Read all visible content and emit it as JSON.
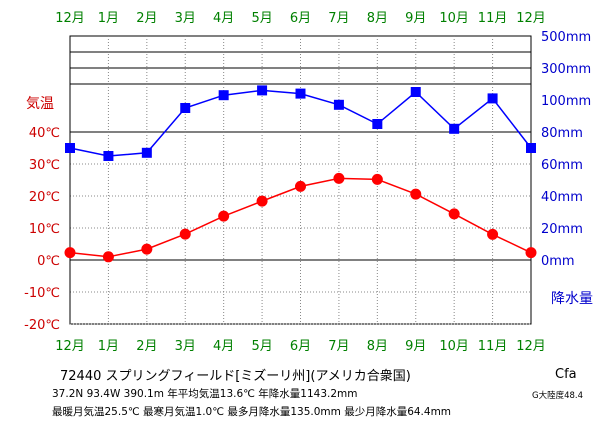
{
  "chart_data": {
    "type": "line",
    "months": [
      "12月",
      "1月",
      "2月",
      "3月",
      "4月",
      "5月",
      "6月",
      "7月",
      "8月",
      "9月",
      "10月",
      "11月",
      "12月"
    ],
    "temp_axis_label": "気温",
    "temp_ticks": [
      "40℃",
      "30℃",
      "20℃",
      "10℃",
      "0℃",
      "-10℃",
      "-20℃"
    ],
    "precip_axis_label": "降水量",
    "precip_ticks": [
      "500mm",
      "300mm",
      "100mm",
      "80mm",
      "60mm",
      "40mm",
      "20mm",
      "0mm"
    ],
    "temperature": [
      2.3,
      1.0,
      3.4,
      8.1,
      13.7,
      18.4,
      23.0,
      25.5,
      25.2,
      20.6,
      14.4,
      8.0,
      2.3
    ],
    "precipitation": [
      70,
      65,
      67,
      95,
      103,
      106,
      104,
      97,
      85,
      105,
      82,
      101,
      70
    ],
    "temp_range": [
      -20,
      40
    ],
    "precip_range": [
      0,
      100
    ],
    "colors": {
      "temperature": "#ff0000",
      "precipitation": "#0000ff",
      "month_labels": "#008000",
      "temp_labels": "#cc0000",
      "precip_labels": "#0000cc",
      "grid": "#888888"
    }
  },
  "info": {
    "station": "72440 スプリングフィールド[ミズーリ州](アメリカ合衆国)",
    "coords": "37.2N  93.4W  390.1m 年平均気温13.6℃ 年降水量1143.2mm",
    "extremes": "最暖月気温25.5℃ 最寒月気温1.0℃ 最多月降水量135.0mm 最少月降水量64.4mm",
    "climate_code": "Cfa",
    "continentality": "G大陸度48.4"
  }
}
